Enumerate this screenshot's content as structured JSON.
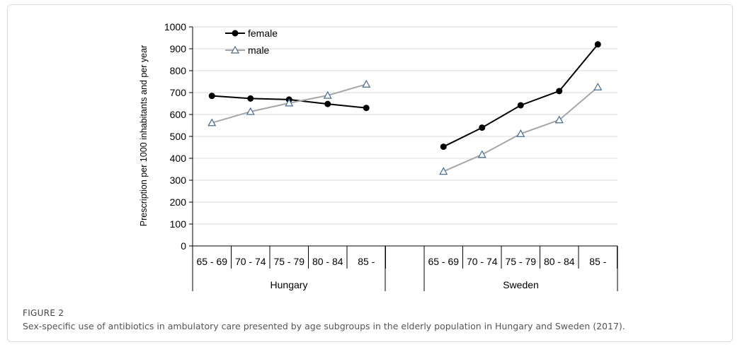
{
  "figure": {
    "label": "FIGURE 2",
    "caption": "Sex-specific use of antibiotics in ambulatory care presented by age subgroups in the elderly population in Hungary and Sweden (2017)."
  },
  "chart_data": {
    "type": "line",
    "ylabel": "Prescription per 1000 inhabitants and per year",
    "ylim": [
      0,
      1000
    ],
    "yticks": [
      0,
      100,
      200,
      300,
      400,
      500,
      600,
      700,
      800,
      900,
      1000
    ],
    "groups": [
      {
        "name": "Hungary",
        "categories": [
          "65 - 69",
          "70 - 74",
          "75 - 79",
          "80 - 84",
          "85 -"
        ]
      },
      {
        "name": "Sweden",
        "categories": [
          "65 - 69",
          "70 - 74",
          "75 - 79",
          "80 - 84",
          "85 -"
        ]
      }
    ],
    "series": [
      {
        "name": "female",
        "color": "#000000",
        "marker": "filled-circle",
        "values": {
          "Hungary": [
            685,
            673,
            668,
            648,
            630
          ],
          "Sweden": [
            453,
            540,
            642,
            707,
            920
          ]
        }
      },
      {
        "name": "male",
        "color": "#a6a6a6",
        "marker": "open-triangle",
        "values": {
          "Hungary": [
            562,
            613,
            652,
            687,
            738
          ],
          "Sweden": [
            340,
            417,
            512,
            575,
            725
          ]
        }
      }
    ],
    "legend": "top-left",
    "grid": true
  }
}
